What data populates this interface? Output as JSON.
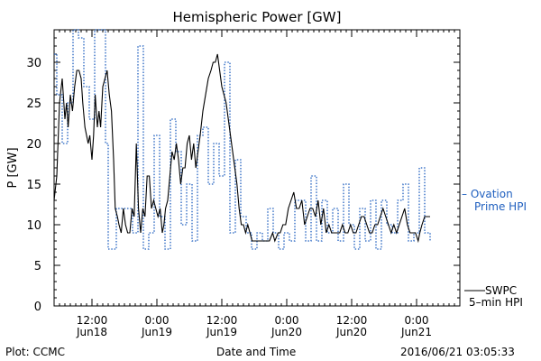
{
  "title": "Hemispheric Power [GW]",
  "footer": {
    "left": "Plot: CCMC",
    "center": "Date and Time",
    "right": "2016/06/21 03:05:33"
  },
  "chart_data": {
    "type": "line",
    "title": "Hemispheric Power [GW]",
    "xlabel": "Date and Time",
    "ylabel": "P [GW]",
    "ylim": [
      0,
      34
    ],
    "yticks": [
      0,
      5,
      10,
      15,
      20,
      25,
      30
    ],
    "xlim_hours": [
      0,
      75
    ],
    "xticks": [
      {
        "hour": 7,
        "time": "12:00",
        "date": "Jun18"
      },
      {
        "hour": 19,
        "time": "0:00",
        "date": "Jun19"
      },
      {
        "hour": 31,
        "time": "12:00",
        "date": "Jun19"
      },
      {
        "hour": 43,
        "time": "0:00",
        "date": "Jun20"
      },
      {
        "hour": 55,
        "time": "12:00",
        "date": "Jun20"
      },
      {
        "hour": 67,
        "time": "0:00",
        "date": "Jun21"
      }
    ],
    "grid": false,
    "legend": [
      {
        "name": "– Ovation",
        "name2": "Prime HPI",
        "color": "#1f5fbf",
        "style": "dotted",
        "position": "right-middle"
      },
      {
        "name": "SWPC",
        "name2": "5–min HPI",
        "color": "#000000",
        "style": "solid",
        "position": "right-bottom"
      }
    ],
    "series": [
      {
        "name": "SWPC 5-min HPI",
        "color": "#000000",
        "style": "solid",
        "points": [
          [
            0,
            13
          ],
          [
            0.5,
            16
          ],
          [
            1,
            25
          ],
          [
            1.5,
            28
          ],
          [
            2,
            23
          ],
          [
            2.3,
            25
          ],
          [
            2.6,
            22
          ],
          [
            3,
            26
          ],
          [
            3.4,
            24
          ],
          [
            3.8,
            27
          ],
          [
            4.2,
            29
          ],
          [
            4.6,
            29
          ],
          [
            5,
            28
          ],
          [
            5.3,
            25
          ],
          [
            5.7,
            22
          ],
          [
            6,
            21
          ],
          [
            6.3,
            20
          ],
          [
            6.6,
            21
          ],
          [
            7,
            18
          ],
          [
            7.3,
            21
          ],
          [
            7.6,
            26
          ],
          [
            8,
            22
          ],
          [
            8.3,
            24
          ],
          [
            8.6,
            22
          ],
          [
            9,
            27
          ],
          [
            9.4,
            28
          ],
          [
            9.8,
            29
          ],
          [
            10.2,
            26
          ],
          [
            10.6,
            24
          ],
          [
            11,
            18
          ],
          [
            11.3,
            12
          ],
          [
            11.7,
            11
          ],
          [
            12,
            10
          ],
          [
            12.4,
            9
          ],
          [
            12.8,
            12
          ],
          [
            13.2,
            10
          ],
          [
            13.6,
            9
          ],
          [
            14,
            9
          ],
          [
            14.4,
            12
          ],
          [
            14.8,
            11
          ],
          [
            15.2,
            20
          ],
          [
            15.6,
            12
          ],
          [
            16,
            9
          ],
          [
            16.4,
            12
          ],
          [
            16.8,
            11
          ],
          [
            17.2,
            16
          ],
          [
            17.6,
            16
          ],
          [
            18,
            12
          ],
          [
            18.4,
            13
          ],
          [
            18.8,
            12
          ],
          [
            19.2,
            11
          ],
          [
            19.6,
            12
          ],
          [
            20,
            9
          ],
          [
            20.3,
            10
          ],
          [
            20.6,
            12
          ],
          [
            21,
            13
          ],
          [
            21.4,
            16
          ],
          [
            21.8,
            19
          ],
          [
            22.2,
            18
          ],
          [
            22.6,
            20
          ],
          [
            23,
            18
          ],
          [
            23.4,
            15
          ],
          [
            23.8,
            17
          ],
          [
            24.2,
            17
          ],
          [
            24.6,
            20
          ],
          [
            25,
            21
          ],
          [
            25.4,
            18
          ],
          [
            25.8,
            20
          ],
          [
            26.2,
            17
          ],
          [
            26.6,
            19
          ],
          [
            27,
            21
          ],
          [
            27.5,
            24
          ],
          [
            28,
            26
          ],
          [
            28.5,
            28
          ],
          [
            29,
            29
          ],
          [
            29.4,
            30
          ],
          [
            29.8,
            30
          ],
          [
            30.2,
            31
          ],
          [
            30.6,
            29
          ],
          [
            31,
            27
          ],
          [
            31.4,
            26
          ],
          [
            31.8,
            25
          ],
          [
            32.2,
            23
          ],
          [
            32.6,
            21
          ],
          [
            33,
            19
          ],
          [
            33.4,
            17
          ],
          [
            33.8,
            15
          ],
          [
            34.2,
            12
          ],
          [
            34.6,
            10
          ],
          [
            35,
            10
          ],
          [
            35.4,
            9
          ],
          [
            35.8,
            10
          ],
          [
            36.2,
            9
          ],
          [
            36.6,
            8
          ],
          [
            37.2,
            8
          ],
          [
            38,
            8
          ],
          [
            39,
            8
          ],
          [
            39.8,
            8
          ],
          [
            40.4,
            9
          ],
          [
            40.8,
            8
          ],
          [
            41.4,
            9
          ],
          [
            41.8,
            9
          ],
          [
            42.3,
            10
          ],
          [
            42.8,
            10
          ],
          [
            43.3,
            12
          ],
          [
            43.8,
            13
          ],
          [
            44.3,
            14
          ],
          [
            44.8,
            12
          ],
          [
            45.3,
            12
          ],
          [
            45.8,
            13
          ],
          [
            46.3,
            10
          ],
          [
            46.8,
            11
          ],
          [
            47.3,
            12
          ],
          [
            47.8,
            12
          ],
          [
            48.3,
            11
          ],
          [
            48.8,
            13
          ],
          [
            49.3,
            10
          ],
          [
            49.8,
            12
          ],
          [
            50.3,
            9
          ],
          [
            50.8,
            10
          ],
          [
            51.3,
            9
          ],
          [
            51.8,
            9
          ],
          [
            52.3,
            9
          ],
          [
            52.8,
            9
          ],
          [
            53.3,
            10
          ],
          [
            53.8,
            9
          ],
          [
            54.3,
            9
          ],
          [
            54.8,
            10
          ],
          [
            55.3,
            9
          ],
          [
            55.8,
            9
          ],
          [
            56.3,
            10
          ],
          [
            56.8,
            11
          ],
          [
            57.3,
            11
          ],
          [
            57.8,
            10
          ],
          [
            58.3,
            9
          ],
          [
            58.8,
            9
          ],
          [
            59.3,
            10
          ],
          [
            59.8,
            10
          ],
          [
            60.3,
            11
          ],
          [
            60.8,
            12
          ],
          [
            61.3,
            11
          ],
          [
            61.8,
            10
          ],
          [
            62.3,
            9
          ],
          [
            62.8,
            10
          ],
          [
            63.3,
            9
          ],
          [
            63.8,
            10
          ],
          [
            64.3,
            11
          ],
          [
            64.8,
            12
          ],
          [
            65.3,
            10
          ],
          [
            65.8,
            9
          ],
          [
            66.3,
            9
          ],
          [
            66.8,
            9
          ],
          [
            67.3,
            8
          ],
          [
            67.6,
            9
          ],
          [
            68,
            10
          ],
          [
            68.5,
            11
          ],
          [
            69,
            11
          ],
          [
            69.5,
            11
          ]
        ]
      },
      {
        "name": "Ovation Prime HPI",
        "color": "#1f5fbf",
        "style": "dotted",
        "points": [
          [
            0,
            31
          ],
          [
            0.5,
            26
          ],
          [
            1.5,
            20
          ],
          [
            2.5,
            25
          ],
          [
            3.5,
            34
          ],
          [
            4.5,
            33
          ],
          [
            5.5,
            27
          ],
          [
            6.5,
            23
          ],
          [
            7.5,
            34
          ],
          [
            8.5,
            34
          ],
          [
            9.5,
            20
          ],
          [
            10,
            7
          ],
          [
            11.5,
            12
          ],
          [
            13,
            12
          ],
          [
            14.5,
            9
          ],
          [
            15.5,
            32
          ],
          [
            16.5,
            7
          ],
          [
            17.5,
            9
          ],
          [
            18.5,
            21
          ],
          [
            19.5,
            11
          ],
          [
            20.5,
            7
          ],
          [
            21.5,
            23
          ],
          [
            22.5,
            19
          ],
          [
            23.5,
            10
          ],
          [
            24.5,
            15
          ],
          [
            25.5,
            8
          ],
          [
            26.5,
            21
          ],
          [
            27.5,
            22
          ],
          [
            28.5,
            15
          ],
          [
            29.5,
            20
          ],
          [
            30.5,
            16
          ],
          [
            31.5,
            30
          ],
          [
            32.5,
            9
          ],
          [
            33.5,
            18
          ],
          [
            34.5,
            11
          ],
          [
            35.5,
            9
          ],
          [
            36.5,
            7
          ],
          [
            37.5,
            9
          ],
          [
            38.5,
            8
          ],
          [
            39.5,
            12
          ],
          [
            40.5,
            9
          ],
          [
            41.5,
            7
          ],
          [
            42.5,
            9
          ],
          [
            43.5,
            8
          ],
          [
            44.5,
            13
          ],
          [
            45.5,
            13
          ],
          [
            46.5,
            8
          ],
          [
            47.5,
            16
          ],
          [
            48.5,
            8
          ],
          [
            49.5,
            13
          ],
          [
            50.5,
            9
          ],
          [
            51.5,
            12
          ],
          [
            52.5,
            8
          ],
          [
            53.5,
            15
          ],
          [
            54.5,
            10
          ],
          [
            55.5,
            7
          ],
          [
            56.5,
            12
          ],
          [
            57.5,
            8
          ],
          [
            58.5,
            13
          ],
          [
            59.5,
            7
          ],
          [
            60.5,
            13
          ],
          [
            61.5,
            10
          ],
          [
            62.5,
            9
          ],
          [
            63.5,
            13
          ],
          [
            64.5,
            15
          ],
          [
            65.5,
            8
          ],
          [
            66.5,
            9
          ],
          [
            67.5,
            17
          ],
          [
            68.5,
            9
          ],
          [
            69.5,
            8
          ]
        ]
      }
    ]
  }
}
